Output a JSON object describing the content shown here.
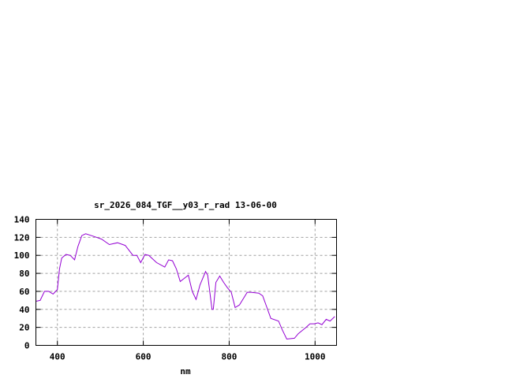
{
  "chart_data": {
    "type": "line",
    "title": "sr_2026_084_TGF__y03_r_rad 13-06-00",
    "xlabel": "nm",
    "ylabel": "",
    "xlim": [
      350,
      1050
    ],
    "ylim": [
      0,
      140
    ],
    "xticks": [
      400,
      600,
      800,
      1000
    ],
    "yticks": [
      0,
      20,
      40,
      60,
      80,
      100,
      120,
      140
    ],
    "grid": true,
    "line_color": "#9400d3",
    "series": [
      {
        "x": [
          350,
          360,
          370,
          380,
          390,
          400,
          405,
          410,
          420,
          430,
          440,
          448,
          457,
          466,
          485,
          503,
          521,
          540,
          558,
          576,
          585,
          594,
          604,
          613,
          631,
          650,
          659,
          668,
          677,
          686,
          705,
          714,
          723,
          732,
          745,
          750,
          760,
          763,
          769,
          778,
          787,
          796,
          805,
          814,
          824,
          842,
          851,
          869,
          878,
          888,
          897,
          915,
          924,
          934,
          952,
          961,
          979,
          988,
          998,
          1007,
          1016,
          1026,
          1035,
          1046
        ],
        "y": [
          49,
          50,
          60,
          60,
          57,
          62,
          85,
          97,
          101,
          100,
          95,
          110,
          122,
          124,
          121,
          118,
          112,
          114,
          111,
          100,
          100,
          92,
          101,
          100,
          92,
          87,
          95,
          94,
          85,
          71,
          78,
          60,
          51,
          67,
          82,
          78,
          40,
          40,
          70,
          77,
          70,
          64,
          59,
          42,
          45,
          59,
          59,
          58,
          55,
          42,
          30,
          27,
          17,
          7,
          8,
          13,
          20,
          24,
          24,
          25,
          23,
          29,
          27,
          32
        ]
      }
    ]
  }
}
